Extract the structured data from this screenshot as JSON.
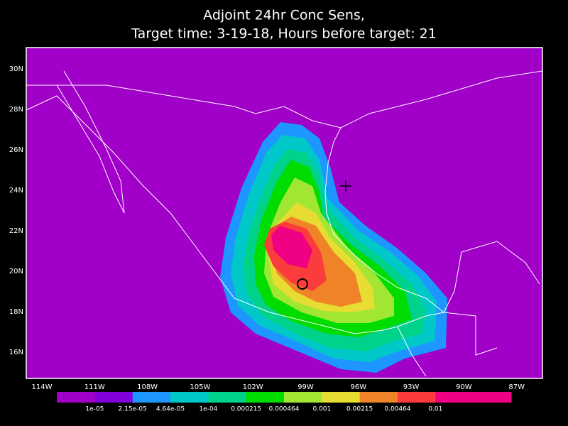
{
  "title": [
    "Adjoint 24hr Conc Sens,",
    "Target time: 3-19-18, Hours before target: 21"
  ],
  "lat_labels": [
    "30N",
    "28N",
    "26N",
    "24N",
    "22N",
    "20N",
    "18N",
    "16N"
  ],
  "lon_labels": [
    "114W",
    "111W",
    "108W",
    "105W",
    "102W",
    "99W",
    "96W",
    "93W",
    "90W",
    "87W"
  ],
  "colorbar": {
    "colors": [
      "#a000c8",
      "#8200dc",
      "#1e96ff",
      "#00c8c8",
      "#00d28c",
      "#00dc00",
      "#a0e632",
      "#e6dc32",
      "#f08228",
      "#fa3c3c",
      "#f00082",
      "#f00082"
    ],
    "labels": [
      "1e-05",
      "2.15e-05",
      "4.64e-05",
      "1e-04",
      "0.000215",
      "0.000464",
      "0.001",
      "0.00215",
      "0.00464",
      "0.01"
    ]
  }
}
